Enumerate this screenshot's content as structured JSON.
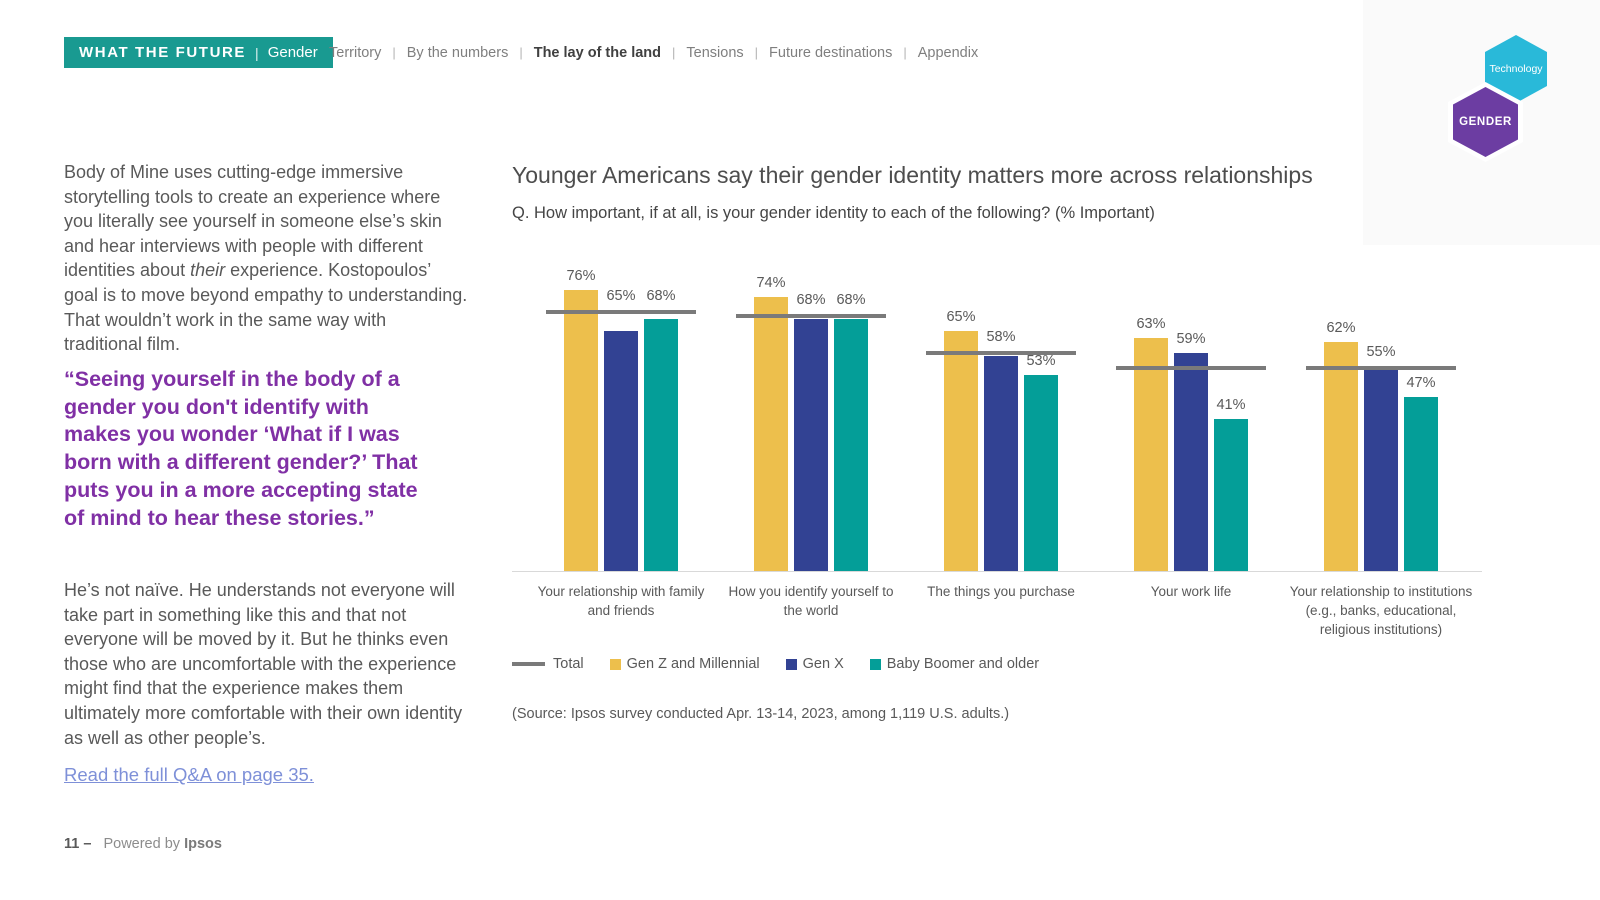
{
  "header": {
    "badge": {
      "title": "WHAT THE FUTURE",
      "separator": "|",
      "edition": "Gender"
    },
    "nav": {
      "separator": "|",
      "items": [
        {
          "label": "Territory",
          "active": false
        },
        {
          "label": "By the numbers",
          "active": false
        },
        {
          "label": "The lay of the land",
          "active": true
        },
        {
          "label": "Tensions",
          "active": false
        },
        {
          "label": "Future destinations",
          "active": false
        },
        {
          "label": "Appendix",
          "active": false
        }
      ]
    },
    "logo": {
      "top_hex_label": "Technology",
      "bottom_hex_label": "GENDER"
    }
  },
  "article": {
    "p1_before": "Body of Mine uses cutting-edge immersive storytelling tools to create an experience where you literally see yourself in someone else’s skin and hear interviews with people with different identities about ",
    "p1_italic": "their",
    "p1_after": " experience. Kostopoulos’ goal is to move beyond empathy to understanding. That wouldn’t work in the same way with traditional film.",
    "quote": "“Seeing yourself in the body of a gender you don't identify with makes you wonder ‘What if I was born with a different gender?’ That puts you in a more accepting state of mind to hear these stories.”",
    "p2": "He’s not naïve. He understands not everyone will take part in something like this and that not everyone will be moved by it. But he thinks even those who are uncomfortable with the experience might find that the experience makes them ultimately more comfortable with their own identity as well as other people’s.",
    "link": "Read the full Q&A on page 35."
  },
  "chart": {
    "title": "Younger Americans say their gender identity matters more across relationships",
    "question": "Q. How important, if at all, is your gender identity to each of the following? (% Important)",
    "source": "(Source: Ipsos survey conducted Apr. 13-14, 2023, among 1,119 U.S. adults.)"
  },
  "chart_data": {
    "type": "bar",
    "title": "Younger Americans say their gender identity matters more across relationships",
    "xlabel": "",
    "ylabel": "% Important",
    "ylim": [
      0,
      80
    ],
    "grid": false,
    "legend_position": "bottom",
    "value_suffix": "%",
    "categories": [
      "Your relationship with family and friends",
      "How you identify yourself to the world",
      "The things you purchase",
      "Your work life",
      "Your relationship to institutions (e.g., banks, educational, religious institutions)"
    ],
    "series": [
      {
        "name": "Gen Z and Millennial",
        "color": "#EDBF4C",
        "values": [
          76,
          74,
          65,
          63,
          62
        ]
      },
      {
        "name": "Gen X",
        "color": "#324293",
        "values": [
          65,
          68,
          58,
          59,
          55
        ]
      },
      {
        "name": "Baby Boomer and older",
        "color": "#049E98",
        "values": [
          68,
          68,
          53,
          41,
          47
        ]
      }
    ],
    "total_line": {
      "name": "Total",
      "color": "#7A7A7A",
      "values": [
        70,
        69,
        59,
        55,
        55
      ],
      "estimated": true
    }
  },
  "footer": {
    "page_number": "11",
    "dash": "–",
    "powered_by": "Powered by",
    "brand": "Ipsos"
  },
  "colors": {
    "badge_teal": "#199A91",
    "bar_yellow": "#EDBF4C",
    "bar_blue": "#324293",
    "bar_teal": "#049E98",
    "total_gray": "#7A7A7A",
    "quote_purple": "#8030A5",
    "link_blue": "#7E90D8",
    "hex_cyan": "#29B9D9",
    "hex_purple": "#6C3DA2"
  }
}
